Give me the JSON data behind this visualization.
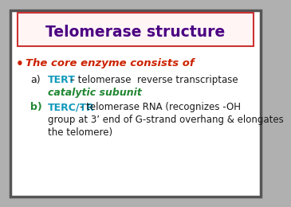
{
  "title": "Telomerase structure",
  "title_color": "#4b0082",
  "title_box_edge_color": "#cc3333",
  "slide_bg": "#b0b0b0",
  "slide_inner_bg": "#ffffff",
  "bullet_color": "#cc2200",
  "bullet_text": "The core enzyme consists of",
  "item_a_label_color": "#1199bb",
  "item_a_text": "– telomerase  reverse transcriptase",
  "item_a_text2": "catalytic subunit",
  "item_a_text2_color": "#228833",
  "item_b_label_color": "#228833",
  "item_b_keyword": "TERC/TR",
  "item_b_keyword_color": "#1199bb",
  "item_b_text": "- telomerase RNA (recognizes -OH",
  "item_b_text2": "group at 3’ end of G-strand overhang & elongates",
  "item_b_text3": "the telomere)",
  "item_text_color": "#1a1a1a"
}
